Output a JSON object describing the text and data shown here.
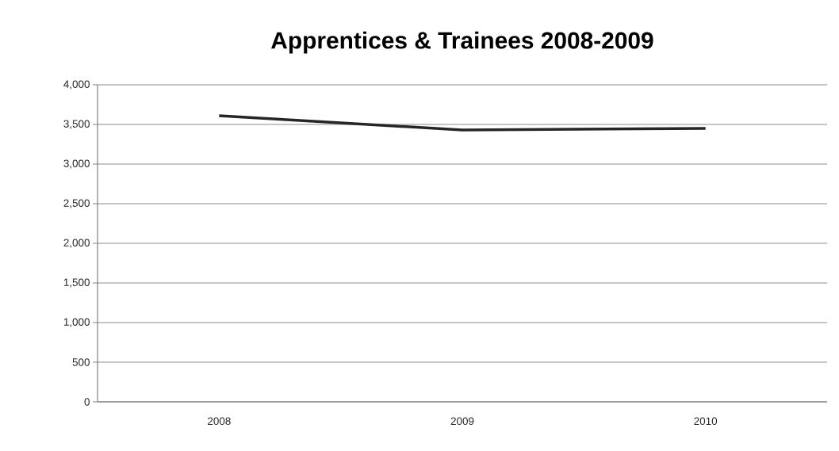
{
  "chart_data": {
    "type": "line",
    "title": "Apprentices & Trainees 2008-2009",
    "categories": [
      "2008",
      "2009",
      "2010"
    ],
    "values": [
      3610,
      3430,
      3450
    ],
    "color": "#262626",
    "ylim": [
      0,
      4000
    ],
    "yticks": [
      {
        "value": 0,
        "label": "0"
      },
      {
        "value": 500,
        "label": "500"
      },
      {
        "value": 1000,
        "label": "1,000"
      },
      {
        "value": 1500,
        "label": "1,500"
      },
      {
        "value": 2000,
        "label": "2,000"
      },
      {
        "value": 2500,
        "label": "2,500"
      },
      {
        "value": 3000,
        "label": "3,000"
      },
      {
        "value": 3500,
        "label": "3,500"
      },
      {
        "value": 4000,
        "label": "4,000"
      }
    ],
    "grid": "y",
    "marker": "none",
    "line_style": "solid"
  }
}
